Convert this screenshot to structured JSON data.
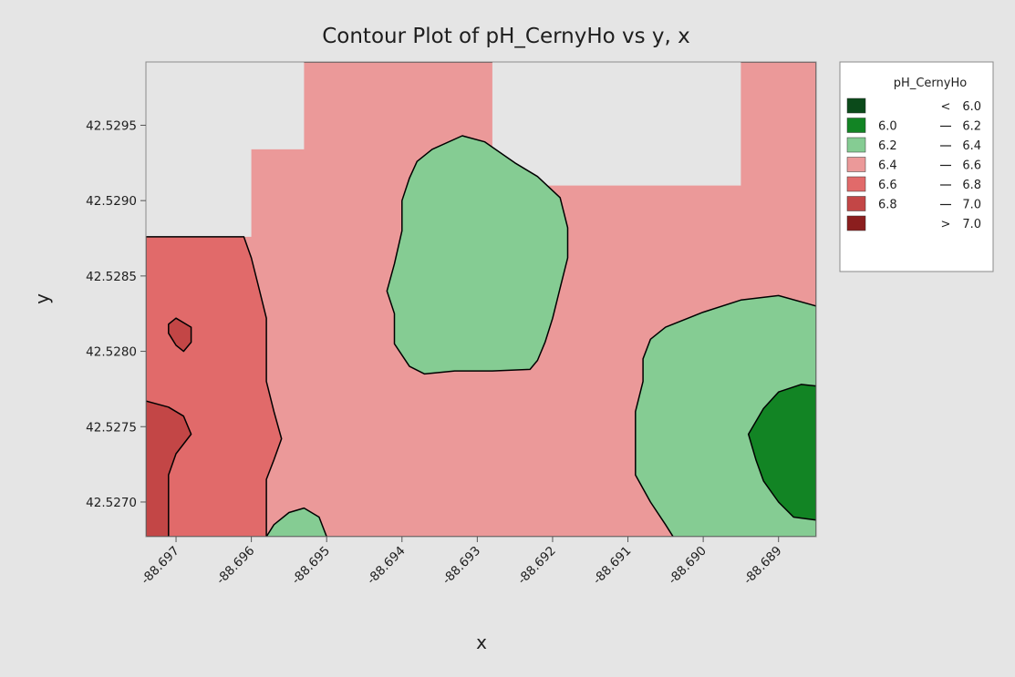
{
  "chart_data": {
    "type": "contour",
    "title": "Contour Plot of pH_CernyHo vs y, x",
    "xlabel": "x",
    "ylabel": "y",
    "x_ticks": [
      -88.697,
      -88.696,
      -88.695,
      -88.694,
      -88.693,
      -88.692,
      -88.691,
      -88.69,
      -88.689
    ],
    "x_tick_labels": [
      "-88.697",
      "-88.696",
      "-88.695",
      "-88.694",
      "-88.693",
      "-88.692",
      "-88.691",
      "-88.690",
      "-88.689"
    ],
    "y_ticks": [
      42.527,
      42.5275,
      42.528,
      42.5285,
      42.529,
      42.5295
    ],
    "y_tick_labels": [
      "42.5270",
      "42.5275",
      "42.5280",
      "42.5285",
      "42.5290",
      "42.5295"
    ],
    "xlim": [
      -88.6974,
      -88.6885
    ],
    "ylim": [
      42.52677,
      42.52992
    ],
    "legend": {
      "title": "pH_CernyHo",
      "position": "right",
      "bands": [
        {
          "lo": "<",
          "hi": "6.0",
          "color": "#0b4a1a"
        },
        {
          "lo": "6.0",
          "hi": "6.2",
          "color": "#128424"
        },
        {
          "lo": "6.2",
          "hi": "6.4",
          "color": "#85cc93"
        },
        {
          "lo": "6.4",
          "hi": "6.6",
          "color": "#eb9999"
        },
        {
          "lo": "6.6",
          "hi": "6.8",
          "color": "#e16a6a"
        },
        {
          "lo": "6.8",
          "hi": "7.0",
          "color": "#c34646"
        },
        {
          "lo": ">",
          "hi": "7.0",
          "color": "#8b1e1e"
        }
      ]
    },
    "regions": [
      {
        "band": "6.4 – 6.6",
        "color": "#eb9999",
        "points": [
          [
            -88.6974,
            42.52677
          ],
          [
            -88.6885,
            42.52677
          ],
          [
            -88.6885,
            42.52992
          ],
          [
            -88.6974,
            42.52992
          ]
        ]
      },
      {
        "band": "no data",
        "color": "#e5e5e5",
        "points": [
          [
            -88.6974,
            42.52992
          ],
          [
            -88.6953,
            42.52992
          ],
          [
            -88.6953,
            42.52934
          ],
          [
            -88.696,
            42.52934
          ],
          [
            -88.696,
            42.52876
          ],
          [
            -88.6974,
            42.52876
          ]
        ]
      },
      {
        "band": "no data",
        "color": "#e5e5e5",
        "points": [
          [
            -88.6928,
            42.52992
          ],
          [
            -88.6895,
            42.52992
          ],
          [
            -88.6895,
            42.5291
          ],
          [
            -88.6928,
            42.5291
          ]
        ]
      },
      {
        "band": "6.6 – 6.8",
        "color": "#e16a6a",
        "points": [
          [
            -88.6974,
            42.52876
          ],
          [
            -88.6961,
            42.52876
          ],
          [
            -88.696,
            42.52862
          ],
          [
            -88.6959,
            42.52842
          ],
          [
            -88.6958,
            42.52822
          ],
          [
            -88.6958,
            42.528
          ],
          [
            -88.6958,
            42.5278
          ],
          [
            -88.6957,
            42.5276
          ],
          [
            -88.6956,
            42.52742
          ],
          [
            -88.6957,
            42.52728
          ],
          [
            -88.6958,
            42.52715
          ],
          [
            -88.6958,
            42.527
          ],
          [
            -88.6958,
            42.52677
          ],
          [
            -88.6974,
            42.52677
          ]
        ]
      },
      {
        "band": "6.8 – 7.0",
        "color": "#c34646",
        "points": [
          [
            -88.6974,
            42.52767
          ],
          [
            -88.6971,
            42.52763
          ],
          [
            -88.6969,
            42.52757
          ],
          [
            -88.6968,
            42.52745
          ],
          [
            -88.697,
            42.52732
          ],
          [
            -88.6971,
            42.52718
          ],
          [
            -88.6971,
            42.52702
          ],
          [
            -88.6971,
            42.52685
          ],
          [
            -88.6971,
            42.52677
          ],
          [
            -88.6974,
            42.52677
          ]
        ]
      },
      {
        "band": "6.8 – 7.0",
        "color": "#c34646",
        "points": [
          [
            -88.697,
            42.52822
          ],
          [
            -88.6968,
            42.52816
          ],
          [
            -88.6968,
            42.52806
          ],
          [
            -88.6969,
            42.528
          ],
          [
            -88.697,
            42.52804
          ],
          [
            -88.6971,
            42.52812
          ],
          [
            -88.6971,
            42.52818
          ]
        ]
      },
      {
        "band": "6.2 – 6.4",
        "color": "#85cc93",
        "points": [
          [
            -88.6938,
            42.52926
          ],
          [
            -88.6936,
            42.52934
          ],
          [
            -88.6932,
            42.52943
          ],
          [
            -88.6929,
            42.52939
          ],
          [
            -88.6925,
            42.52925
          ],
          [
            -88.6922,
            42.52916
          ],
          [
            -88.6919,
            42.52902
          ],
          [
            -88.6918,
            42.52882
          ],
          [
            -88.6918,
            42.52862
          ],
          [
            -88.6919,
            42.52842
          ],
          [
            -88.692,
            42.52822
          ],
          [
            -88.6921,
            42.52806
          ],
          [
            -88.6922,
            42.52794
          ],
          [
            -88.6923,
            42.52788
          ],
          [
            -88.6928,
            42.52787
          ],
          [
            -88.6933,
            42.52787
          ],
          [
            -88.6937,
            42.52785
          ],
          [
            -88.6939,
            42.5279
          ],
          [
            -88.6941,
            42.52805
          ],
          [
            -88.6941,
            42.52825
          ],
          [
            -88.6942,
            42.5284
          ],
          [
            -88.6941,
            42.52858
          ],
          [
            -88.694,
            42.5288
          ],
          [
            -88.694,
            42.529
          ],
          [
            -88.6939,
            42.52915
          ]
        ]
      },
      {
        "band": "6.2 – 6.4",
        "color": "#85cc93",
        "points": [
          [
            -88.6885,
            42.5283
          ],
          [
            -88.689,
            42.52837
          ],
          [
            -88.6895,
            42.52834
          ],
          [
            -88.69,
            42.52826
          ],
          [
            -88.6905,
            42.52816
          ],
          [
            -88.6907,
            42.52808
          ],
          [
            -88.6908,
            42.52795
          ],
          [
            -88.6908,
            42.5278
          ],
          [
            -88.6909,
            42.5276
          ],
          [
            -88.6909,
            42.52738
          ],
          [
            -88.6909,
            42.52718
          ],
          [
            -88.6907,
            42.527
          ],
          [
            -88.6905,
            42.52685
          ],
          [
            -88.6904,
            42.52677
          ],
          [
            -88.6885,
            42.52677
          ]
        ]
      },
      {
        "band": "6.0 – 6.2",
        "color": "#128424",
        "points": [
          [
            -88.6885,
            42.52777
          ],
          [
            -88.6887,
            42.52778
          ],
          [
            -88.689,
            42.52773
          ],
          [
            -88.6892,
            42.52762
          ],
          [
            -88.6894,
            42.52745
          ],
          [
            -88.6893,
            42.52728
          ],
          [
            -88.6892,
            42.52714
          ],
          [
            -88.689,
            42.527
          ],
          [
            -88.6888,
            42.5269
          ],
          [
            -88.6885,
            42.52688
          ]
        ]
      },
      {
        "band": "6.2 – 6.4",
        "color": "#85cc93",
        "points": [
          [
            -88.6958,
            42.52677
          ],
          [
            -88.6957,
            42.52685
          ],
          [
            -88.6955,
            42.52693
          ],
          [
            -88.6953,
            42.52696
          ],
          [
            -88.6951,
            42.5269
          ],
          [
            -88.695,
            42.52677
          ]
        ]
      }
    ]
  }
}
